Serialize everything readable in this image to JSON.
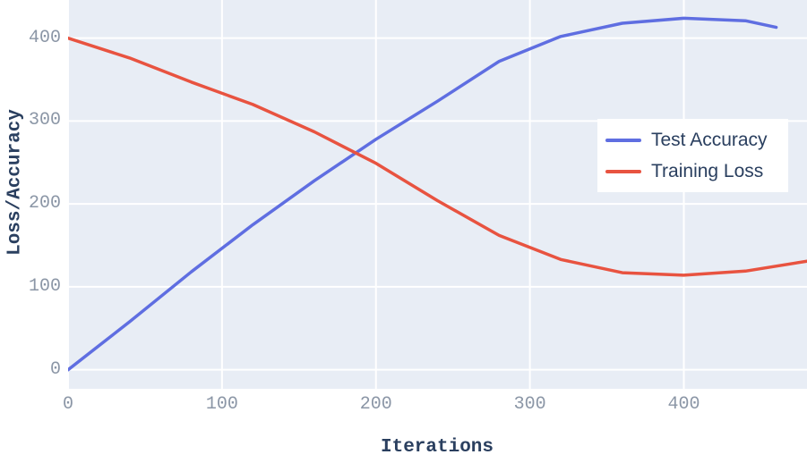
{
  "colors": {
    "page_background": "#ffffff",
    "plot_background": "#e8edf5",
    "grid": "#ffffff",
    "tick_label": "#8b96a6",
    "axis_title": "#2a3f5f",
    "legend_text": "#2a3f5f",
    "legend_background": "#ffffff",
    "accuracy_line": "#5f6ee1",
    "loss_line": "#e85340"
  },
  "chart_data": {
    "type": "line",
    "title": "",
    "xlabel": "Iterations",
    "ylabel": "Loss/Accuracy",
    "xlim": [
      0,
      480
    ],
    "ylim": [
      -23,
      446
    ],
    "x_ticks": [
      0,
      100,
      200,
      300,
      400
    ],
    "y_ticks": [
      0,
      100,
      200,
      300,
      400
    ],
    "grid": true,
    "legend_position": "right-middle",
    "series": [
      {
        "name": "Test Accuracy",
        "color": "#5f6ee1",
        "x": [
          0,
          40,
          80,
          120,
          160,
          200,
          240,
          280,
          320,
          360,
          400,
          440,
          460
        ],
        "y": [
          0,
          58,
          118,
          175,
          228,
          278,
          324,
          372,
          402,
          418,
          424,
          421,
          413
        ]
      },
      {
        "name": "Training Loss",
        "color": "#e85340",
        "x": [
          0,
          40,
          80,
          120,
          160,
          200,
          240,
          280,
          320,
          360,
          400,
          440,
          480
        ],
        "y": [
          400,
          376,
          347,
          320,
          287,
          249,
          204,
          162,
          133,
          117,
          114,
          119,
          131
        ]
      }
    ]
  }
}
